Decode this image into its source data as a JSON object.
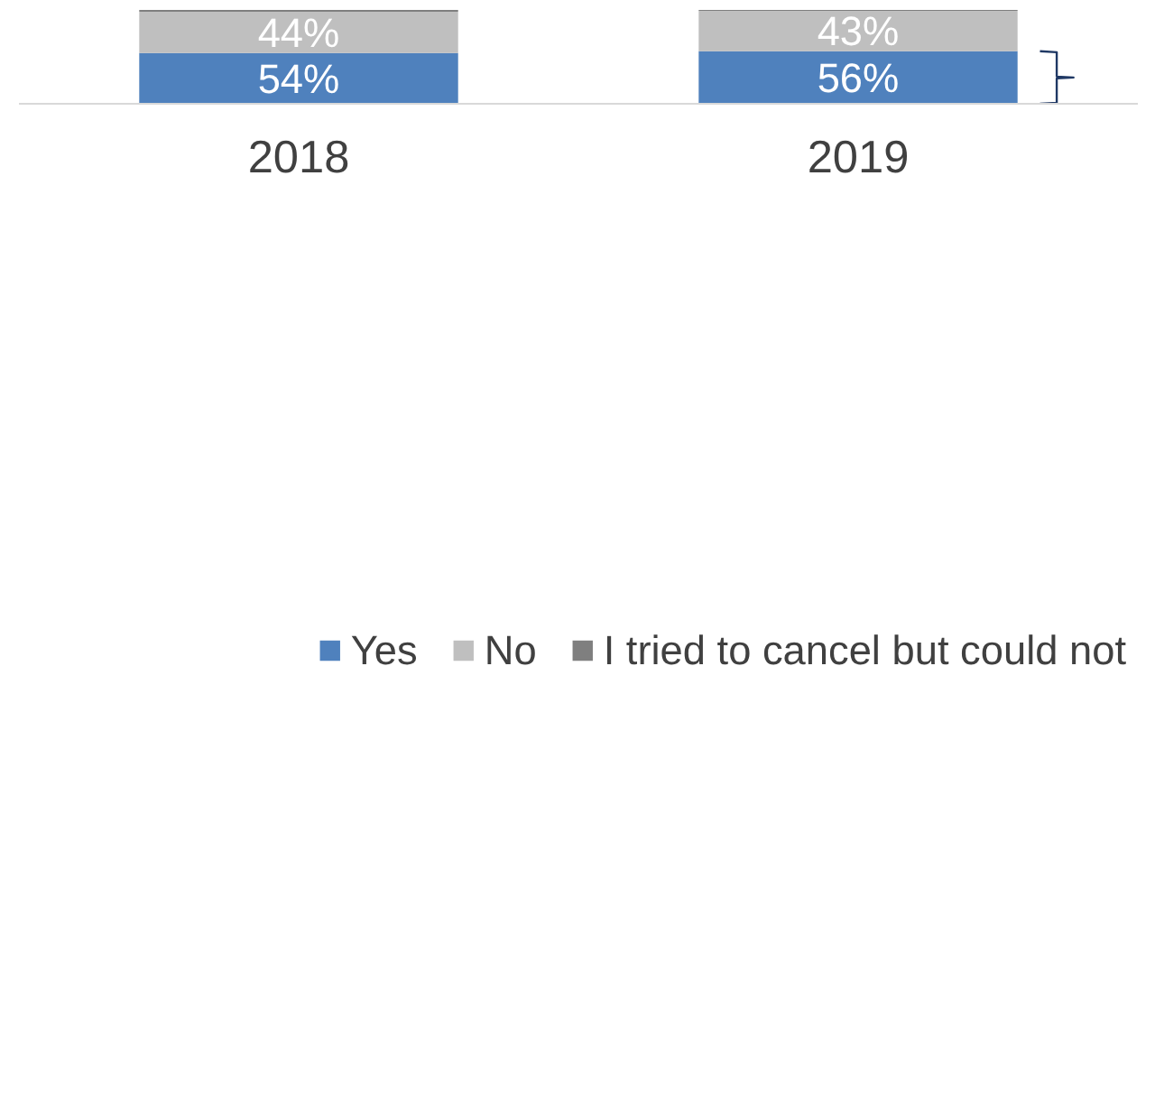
{
  "chart_data": {
    "type": "bar",
    "stacked": true,
    "categories": [
      "2018",
      "2019"
    ],
    "legend": "bottom",
    "grid": false,
    "series": [
      {
        "name": "Yes",
        "color": "#4f81bd",
        "values": [
          54,
          56
        ],
        "value_labels": [
          "54%",
          "56%"
        ]
      },
      {
        "name": "No",
        "color": "#bfbfbf",
        "values": [
          44,
          43
        ],
        "value_labels": [
          "44%",
          "43%"
        ]
      },
      {
        "name": "I tried to cancel but could not",
        "color": "#7f7f7f",
        "values": [
          2,
          1
        ],
        "value_labels": [
          null,
          null
        ]
      }
    ]
  }
}
